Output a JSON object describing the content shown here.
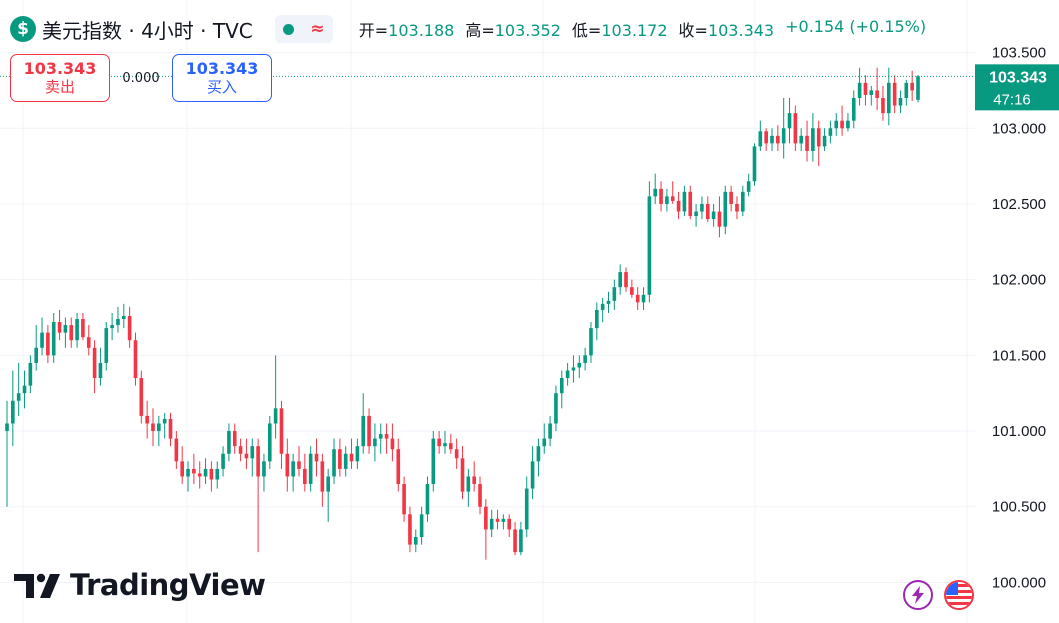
{
  "header": {
    "symbol_icon": "dollar-icon",
    "title": "美元指数 · 4小时 · TVC",
    "ohlc": [
      {
        "label": "开=",
        "value": "103.188"
      },
      {
        "label": "高=",
        "value": "103.352"
      },
      {
        "label": "低=",
        "value": "103.172"
      },
      {
        "label": "收=",
        "value": "103.343"
      }
    ],
    "change": "+0.154 (+0.15%)"
  },
  "trade": {
    "sell_price": "103.343",
    "sell_label": "卖出",
    "spread": "0.000",
    "buy_price": "103.343",
    "buy_label": "买入"
  },
  "last_price": {
    "price": "103.343",
    "countdown": "47:16"
  },
  "branding": {
    "name": "TradingView"
  },
  "colors": {
    "up": "#089981",
    "down": "#f23645",
    "grid": "#f0f3fa",
    "text": "#131722"
  },
  "chart_data": {
    "type": "candlestick",
    "y_ticks": [
      "103.500",
      "103.000",
      "102.500",
      "102.000",
      "101.500",
      "101.000",
      "100.500",
      "100.000"
    ],
    "ylim": [
      99.95,
      103.55
    ],
    "ohlc": [
      [
        101.0,
        101.2,
        100.5,
        101.05
      ],
      [
        101.05,
        101.4,
        100.9,
        101.2
      ],
      [
        101.2,
        101.45,
        101.1,
        101.25
      ],
      [
        101.25,
        101.4,
        101.15,
        101.3
      ],
      [
        101.3,
        101.5,
        101.25,
        101.45
      ],
      [
        101.45,
        101.7,
        101.4,
        101.55
      ],
      [
        101.55,
        101.75,
        101.5,
        101.65
      ],
      [
        101.65,
        101.7,
        101.45,
        101.5
      ],
      [
        101.5,
        101.78,
        101.45,
        101.72
      ],
      [
        101.72,
        101.8,
        101.6,
        101.65
      ],
      [
        101.65,
        101.75,
        101.55,
        101.7
      ],
      [
        101.7,
        101.75,
        101.55,
        101.6
      ],
      [
        101.6,
        101.78,
        101.55,
        101.74
      ],
      [
        101.74,
        101.78,
        101.6,
        101.62
      ],
      [
        101.62,
        101.7,
        101.5,
        101.55
      ],
      [
        101.55,
        101.6,
        101.25,
        101.35
      ],
      [
        101.35,
        101.55,
        101.3,
        101.45
      ],
      [
        101.45,
        101.72,
        101.4,
        101.68
      ],
      [
        101.68,
        101.78,
        101.6,
        101.7
      ],
      [
        101.7,
        101.82,
        101.65,
        101.74
      ],
      [
        101.74,
        101.84,
        101.68,
        101.76
      ],
      [
        101.76,
        101.82,
        101.55,
        101.6
      ],
      [
        101.6,
        101.65,
        101.3,
        101.35
      ],
      [
        101.35,
        101.4,
        101.05,
        101.1
      ],
      [
        101.1,
        101.2,
        100.95,
        101.05
      ],
      [
        101.05,
        101.15,
        100.9,
        101.0
      ],
      [
        101.0,
        101.1,
        100.9,
        101.05
      ],
      [
        101.05,
        101.12,
        100.95,
        101.08
      ],
      [
        101.08,
        101.12,
        100.9,
        100.95
      ],
      [
        100.95,
        101.0,
        100.75,
        100.8
      ],
      [
        100.8,
        100.9,
        100.65,
        100.7
      ],
      [
        100.7,
        100.8,
        100.6,
        100.75
      ],
      [
        100.75,
        100.85,
        100.65,
        100.72
      ],
      [
        100.72,
        100.8,
        100.62,
        100.7
      ],
      [
        100.7,
        100.82,
        100.65,
        100.75
      ],
      [
        100.75,
        100.8,
        100.6,
        100.68
      ],
      [
        100.68,
        100.8,
        100.62,
        100.75
      ],
      [
        100.75,
        100.9,
        100.7,
        100.85
      ],
      [
        100.85,
        101.05,
        100.8,
        101.0
      ],
      [
        101.0,
        101.05,
        100.85,
        100.9
      ],
      [
        100.9,
        100.95,
        100.8,
        100.85
      ],
      [
        100.85,
        100.95,
        100.75,
        100.82
      ],
      [
        100.82,
        100.95,
        100.7,
        100.9
      ],
      [
        100.9,
        100.95,
        100.2,
        100.7
      ],
      [
        100.7,
        100.85,
        100.6,
        100.8
      ],
      [
        100.8,
        101.1,
        100.75,
        101.05
      ],
      [
        101.05,
        101.5,
        100.95,
        101.15
      ],
      [
        101.15,
        101.2,
        100.75,
        100.85
      ],
      [
        100.85,
        100.95,
        100.6,
        100.7
      ],
      [
        100.7,
        100.85,
        100.6,
        100.8
      ],
      [
        100.8,
        100.9,
        100.7,
        100.75
      ],
      [
        100.75,
        100.85,
        100.6,
        100.65
      ],
      [
        100.65,
        100.9,
        100.6,
        100.85
      ],
      [
        100.85,
        100.95,
        100.7,
        100.8
      ],
      [
        100.8,
        100.85,
        100.5,
        100.6
      ],
      [
        100.6,
        100.75,
        100.4,
        100.7
      ],
      [
        100.7,
        100.95,
        100.65,
        100.88
      ],
      [
        100.88,
        100.95,
        100.7,
        100.75
      ],
      [
        100.75,
        100.9,
        100.7,
        100.85
      ],
      [
        100.85,
        100.95,
        100.75,
        100.8
      ],
      [
        100.8,
        100.95,
        100.75,
        100.9
      ],
      [
        100.9,
        101.25,
        100.85,
        101.1
      ],
      [
        101.1,
        101.15,
        100.85,
        100.9
      ],
      [
        100.9,
        101.05,
        100.8,
        100.95
      ],
      [
        100.95,
        101.05,
        100.85,
        100.98
      ],
      [
        100.98,
        101.05,
        100.85,
        100.95
      ],
      [
        100.95,
        101.05,
        100.8,
        100.88
      ],
      [
        100.88,
        100.95,
        100.6,
        100.65
      ],
      [
        100.65,
        100.7,
        100.4,
        100.45
      ],
      [
        100.45,
        100.5,
        100.2,
        100.25
      ],
      [
        100.25,
        100.35,
        100.2,
        100.3
      ],
      [
        100.3,
        100.5,
        100.25,
        100.45
      ],
      [
        100.45,
        100.7,
        100.4,
        100.65
      ],
      [
        100.65,
        101.0,
        100.6,
        100.95
      ],
      [
        100.95,
        101.0,
        100.85,
        100.9
      ],
      [
        100.9,
        101.0,
        100.85,
        100.92
      ],
      [
        100.92,
        100.98,
        100.85,
        100.88
      ],
      [
        100.88,
        100.95,
        100.75,
        100.82
      ],
      [
        100.82,
        100.9,
        100.55,
        100.6
      ],
      [
        100.6,
        100.75,
        100.5,
        100.7
      ],
      [
        100.7,
        100.8,
        100.6,
        100.65
      ],
      [
        100.65,
        100.7,
        100.45,
        100.5
      ],
      [
        100.5,
        100.55,
        100.15,
        100.35
      ],
      [
        100.35,
        100.48,
        100.3,
        100.42
      ],
      [
        100.42,
        100.48,
        100.35,
        100.4
      ],
      [
        100.4,
        100.45,
        100.35,
        100.42
      ],
      [
        100.42,
        100.45,
        100.3,
        100.35
      ],
      [
        100.35,
        100.4,
        100.18,
        100.2
      ],
      [
        100.2,
        100.4,
        100.18,
        100.35
      ],
      [
        100.35,
        100.7,
        100.3,
        100.62
      ],
      [
        100.62,
        100.9,
        100.55,
        100.8
      ],
      [
        100.8,
        100.95,
        100.7,
        100.9
      ],
      [
        100.9,
        101.05,
        100.85,
        100.95
      ],
      [
        100.95,
        101.1,
        100.9,
        101.05
      ],
      [
        101.05,
        101.3,
        101.0,
        101.25
      ],
      [
        101.25,
        101.4,
        101.15,
        101.35
      ],
      [
        101.35,
        101.45,
        101.3,
        101.4
      ],
      [
        101.4,
        101.5,
        101.32,
        101.42
      ],
      [
        101.42,
        101.5,
        101.35,
        101.45
      ],
      [
        101.45,
        101.55,
        101.4,
        101.5
      ],
      [
        101.5,
        101.72,
        101.45,
        101.68
      ],
      [
        101.68,
        101.85,
        101.6,
        101.8
      ],
      [
        101.8,
        101.88,
        101.72,
        101.84
      ],
      [
        101.84,
        101.92,
        101.78,
        101.86
      ],
      [
        101.86,
        102.0,
        101.8,
        101.95
      ],
      [
        101.95,
        102.1,
        101.9,
        102.05
      ],
      [
        102.05,
        102.08,
        101.92,
        101.95
      ],
      [
        101.95,
        102.0,
        101.88,
        101.9
      ],
      [
        101.9,
        101.95,
        101.8,
        101.85
      ],
      [
        101.85,
        101.95,
        101.8,
        101.9
      ],
      [
        101.9,
        102.65,
        101.85,
        102.55
      ],
      [
        102.55,
        102.7,
        102.5,
        102.6
      ],
      [
        102.6,
        102.65,
        102.45,
        102.5
      ],
      [
        102.5,
        102.6,
        102.45,
        102.55
      ],
      [
        102.55,
        102.65,
        102.5,
        102.52
      ],
      [
        102.52,
        102.58,
        102.4,
        102.45
      ],
      [
        102.45,
        102.62,
        102.42,
        102.58
      ],
      [
        102.58,
        102.62,
        102.4,
        102.42
      ],
      [
        102.42,
        102.5,
        102.35,
        102.45
      ],
      [
        102.45,
        102.55,
        102.4,
        102.5
      ],
      [
        102.5,
        102.55,
        102.38,
        102.4
      ],
      [
        102.4,
        102.5,
        102.35,
        102.45
      ],
      [
        102.45,
        102.55,
        102.28,
        102.35
      ],
      [
        102.35,
        102.62,
        102.3,
        102.58
      ],
      [
        102.58,
        102.62,
        102.45,
        102.5
      ],
      [
        102.5,
        102.55,
        102.4,
        102.45
      ],
      [
        102.45,
        102.62,
        102.42,
        102.58
      ],
      [
        102.58,
        102.7,
        102.55,
        102.65
      ],
      [
        102.65,
        102.9,
        102.62,
        102.88
      ],
      [
        102.88,
        103.05,
        102.85,
        102.98
      ],
      [
        102.98,
        103.0,
        102.85,
        102.9
      ],
      [
        102.9,
        103.0,
        102.85,
        102.95
      ],
      [
        102.95,
        103.02,
        102.85,
        102.9
      ],
      [
        102.9,
        103.2,
        102.8,
        103.0
      ],
      [
        103.0,
        103.2,
        102.9,
        103.1
      ],
      [
        103.1,
        103.15,
        102.85,
        102.9
      ],
      [
        102.9,
        103.0,
        102.85,
        102.95
      ],
      [
        102.95,
        103.05,
        102.78,
        102.85
      ],
      [
        102.85,
        103.1,
        102.78,
        103.0
      ],
      [
        103.0,
        103.05,
        102.75,
        102.88
      ],
      [
        102.88,
        103.0,
        102.85,
        102.95
      ],
      [
        102.95,
        103.05,
        102.9,
        103.0
      ],
      [
        103.0,
        103.1,
        102.95,
        103.05
      ],
      [
        103.05,
        103.15,
        102.95,
        103.0
      ],
      [
        103.0,
        103.1,
        102.98,
        103.05
      ],
      [
        103.05,
        103.25,
        103.0,
        103.2
      ],
      [
        103.2,
        103.4,
        103.15,
        103.3
      ],
      [
        103.3,
        103.35,
        103.15,
        103.22
      ],
      [
        103.22,
        103.28,
        103.15,
        103.25
      ],
      [
        103.25,
        103.4,
        103.12,
        103.2
      ],
      [
        103.2,
        103.28,
        103.05,
        103.1
      ],
      [
        103.1,
        103.4,
        103.02,
        103.3
      ],
      [
        103.3,
        103.35,
        103.1,
        103.15
      ],
      [
        103.15,
        103.25,
        103.1,
        103.2
      ],
      [
        103.2,
        103.32,
        103.15,
        103.3
      ],
      [
        103.3,
        103.38,
        103.18,
        103.25
      ],
      [
        103.188,
        103.352,
        103.172,
        103.343
      ]
    ]
  }
}
